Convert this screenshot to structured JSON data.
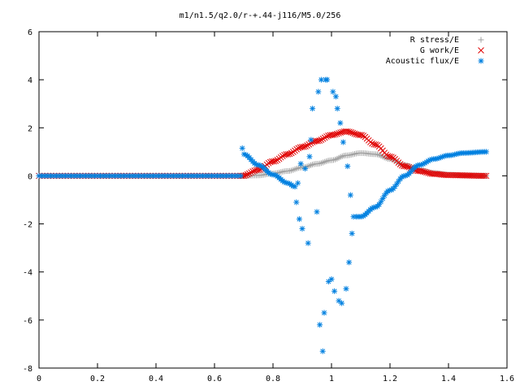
{
  "chart_data": {
    "type": "scatter",
    "title": "m1/n1.5/q2.0/r-+.44-j116/M5.0/256",
    "xlabel": "",
    "ylabel": "",
    "xlim": [
      0,
      1.6
    ],
    "ylim": [
      -8,
      6
    ],
    "xticks": [
      "0",
      "0.2",
      "0.4",
      "0.6",
      "0.8",
      "1",
      "1.2",
      "1.4",
      "1.6"
    ],
    "yticks": [
      "-8",
      "-6",
      "-4",
      "-2",
      "0",
      "2",
      "4",
      "6"
    ],
    "grid": false,
    "legend_position": "top-right",
    "series": [
      {
        "name": "R stress/E",
        "marker": "plus",
        "color": "#a0a0a0",
        "segments": [
          {
            "x_start": 0.0,
            "x_end": 0.695,
            "step": 0.01,
            "y": [
              [
                0.0,
                0.0
              ],
              [
                0.695,
                0.0
              ]
            ]
          },
          {
            "x_start": 0.695,
            "x_end": 1.53,
            "step": 0.006,
            "y": [
              [
                0.695,
                0.0
              ],
              [
                0.75,
                0.02
              ],
              [
                0.8,
                0.1
              ],
              [
                0.85,
                0.2
              ],
              [
                0.9,
                0.35
              ],
              [
                0.95,
                0.5
              ],
              [
                1.0,
                0.65
              ],
              [
                1.05,
                0.85
              ],
              [
                1.1,
                0.95
              ],
              [
                1.15,
                0.9
              ],
              [
                1.2,
                0.7
              ],
              [
                1.25,
                0.45
              ],
              [
                1.3,
                0.25
              ],
              [
                1.35,
                0.12
              ],
              [
                1.4,
                0.05
              ],
              [
                1.45,
                0.02
              ],
              [
                1.53,
                0.0
              ]
            ]
          }
        ]
      },
      {
        "name": "G work/E",
        "marker": "cross",
        "color": "#e00000",
        "segments": [
          {
            "x_start": 0.0,
            "x_end": 0.695,
            "step": 0.01,
            "y": [
              [
                0.0,
                0.0
              ],
              [
                0.695,
                0.0
              ]
            ]
          },
          {
            "x_start": 0.695,
            "x_end": 1.53,
            "step": 0.006,
            "y": [
              [
                0.695,
                0.0
              ],
              [
                0.75,
                0.25
              ],
              [
                0.8,
                0.6
              ],
              [
                0.85,
                0.9
              ],
              [
                0.9,
                1.2
              ],
              [
                0.95,
                1.45
              ],
              [
                1.0,
                1.7
              ],
              [
                1.05,
                1.85
              ],
              [
                1.1,
                1.7
              ],
              [
                1.15,
                1.3
              ],
              [
                1.2,
                0.8
              ],
              [
                1.25,
                0.4
              ],
              [
                1.3,
                0.2
              ],
              [
                1.35,
                0.08
              ],
              [
                1.4,
                0.03
              ],
              [
                1.53,
                0.0
              ]
            ]
          }
        ]
      },
      {
        "name": "Acoustic flux/E",
        "marker": "star",
        "color": "#0080e0",
        "segments": [
          {
            "x_start": 0.0,
            "x_end": 0.695,
            "step": 0.01,
            "y": [
              [
                0.0,
                0.0
              ],
              [
                0.695,
                0.0
              ]
            ]
          },
          {
            "x_start": 0.695,
            "x_end": 0.875,
            "step": 0.006,
            "y": [
              [
                0.695,
                1.15
              ],
              [
                0.7,
                0.9
              ],
              [
                0.75,
                0.45
              ],
              [
                0.8,
                0.05
              ],
              [
                0.85,
                -0.3
              ],
              [
                0.875,
                -0.45
              ]
            ]
          },
          {
            "x_start": 1.085,
            "x_end": 1.53,
            "step": 0.006,
            "y": [
              [
                1.085,
                -1.7
              ],
              [
                1.1,
                -1.7
              ],
              [
                1.15,
                -1.3
              ],
              [
                1.2,
                -0.6
              ],
              [
                1.25,
                0.0
              ],
              [
                1.3,
                0.45
              ],
              [
                1.35,
                0.7
              ],
              [
                1.4,
                0.85
              ],
              [
                1.45,
                0.95
              ],
              [
                1.53,
                1.0
              ]
            ]
          }
        ],
        "points": [
          [
            0.88,
            -1.1
          ],
          [
            0.885,
            -0.3
          ],
          [
            0.89,
            -1.8
          ],
          [
            0.895,
            0.5
          ],
          [
            0.9,
            -2.2
          ],
          [
            0.91,
            0.3
          ],
          [
            0.92,
            -2.8
          ],
          [
            0.925,
            0.8
          ],
          [
            0.93,
            1.5
          ],
          [
            0.935,
            2.8
          ],
          [
            0.95,
            -1.5
          ],
          [
            0.955,
            3.5
          ],
          [
            0.96,
            -6.2
          ],
          [
            0.965,
            4.0
          ],
          [
            0.97,
            -7.3
          ],
          [
            0.975,
            -5.7
          ],
          [
            0.98,
            4.0
          ],
          [
            0.985,
            4.0
          ],
          [
            0.99,
            -4.4
          ],
          [
            1.0,
            -4.3
          ],
          [
            1.005,
            3.5
          ],
          [
            1.01,
            -4.8
          ],
          [
            1.015,
            3.3
          ],
          [
            1.02,
            2.8
          ],
          [
            1.025,
            -5.2
          ],
          [
            1.03,
            2.2
          ],
          [
            1.035,
            -5.3
          ],
          [
            1.04,
            1.4
          ],
          [
            1.05,
            -4.7
          ],
          [
            1.055,
            0.4
          ],
          [
            1.06,
            -3.6
          ],
          [
            1.065,
            -0.8
          ],
          [
            1.07,
            -2.4
          ],
          [
            1.075,
            -1.7
          ]
        ]
      }
    ]
  }
}
